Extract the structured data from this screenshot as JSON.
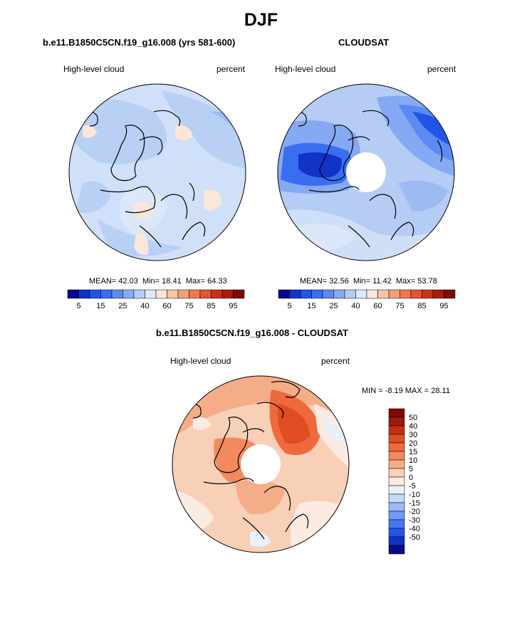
{
  "figure": {
    "title": "DJF",
    "panels": [
      {
        "id": "model",
        "title": "b.e11.B1850C5CN.f19_g16.008 (yrs 581-600)",
        "left_label": "High-level cloud",
        "right_label": "percent",
        "stats": {
          "mean_label": "MEAN=",
          "mean": "42.03",
          "min_label": "Min=",
          "min": "18.41",
          "max_label": "Max=",
          "max": "64.33"
        },
        "colorbar": {
          "ticks": [
            "5",
            "15",
            "25",
            "40",
            "60",
            "75",
            "85",
            "95"
          ]
        }
      },
      {
        "id": "obs",
        "title": "CLOUDSAT",
        "left_label": "High-level cloud",
        "right_label": "percent",
        "stats": {
          "mean_label": "MEAN=",
          "mean": "32.56",
          "min_label": "Min=",
          "min": "11.42",
          "max_label": "Max=",
          "max": "53.78"
        },
        "colorbar": {
          "ticks": [
            "5",
            "15",
            "25",
            "40",
            "60",
            "75",
            "85",
            "95"
          ]
        }
      },
      {
        "id": "diff",
        "title": "b.e11.B1850C5CN.f19_g16.008 - CLOUDSAT",
        "left_label": "High-level cloud",
        "right_label": "percent",
        "stats_text": {
          "min_label": "MIN =",
          "min": "-8.19",
          "max_label": "MAX =",
          "max": "28.11"
        },
        "colorbar": {
          "ticks": [
            "50",
            "40",
            "30",
            "20",
            "15",
            "10",
            "5",
            "0",
            "-5",
            "-10",
            "-15",
            "-20",
            "-30",
            "-40",
            "-50"
          ]
        }
      }
    ],
    "colors": {
      "abs_scale": [
        "#08088a",
        "#1133c8",
        "#2255e6",
        "#3a6ef0",
        "#5b8af2",
        "#86a9f3",
        "#b5ccf5",
        "#dde9fa",
        "#fbe6da",
        "#f6c4a6",
        "#f29e78",
        "#ee7850",
        "#e25530",
        "#c53418",
        "#a81c0c",
        "#7d0a04"
      ],
      "diff_scale": [
        "#0a0a88",
        "#1430c8",
        "#2555e8",
        "#4677f0",
        "#709af3",
        "#9bbbf5",
        "#c6d8f8",
        "#e8f0fb",
        "#fcebe1",
        "#f8d0b8",
        "#f5ad88",
        "#f28a5e",
        "#ee6a3c",
        "#e14d22",
        "#c33014",
        "#a01a08",
        "#7d0a04"
      ]
    }
  }
}
